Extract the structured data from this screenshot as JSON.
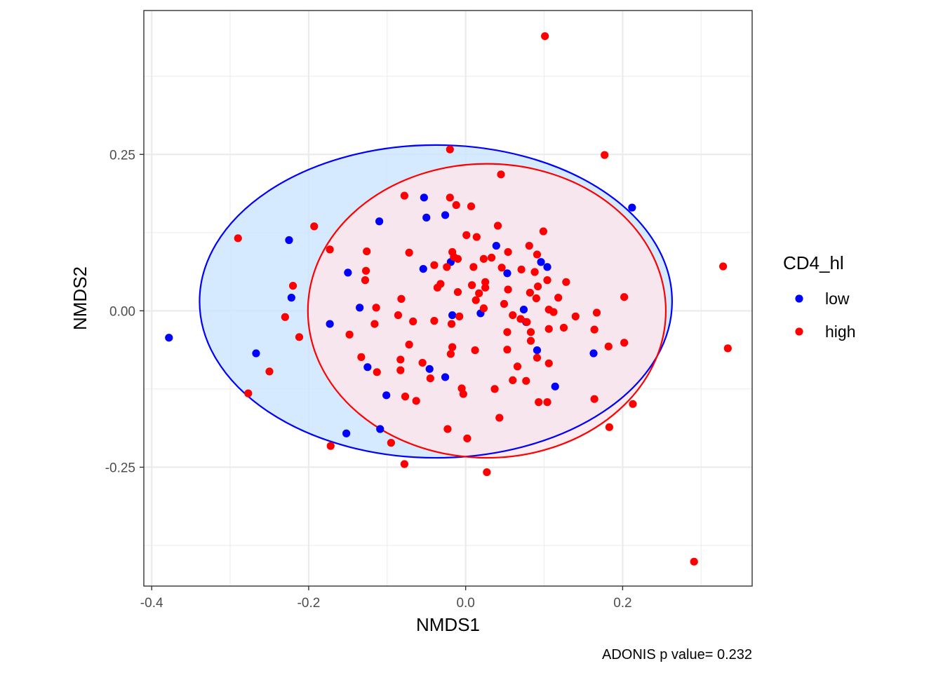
{
  "chart_data": {
    "type": "scatter",
    "xlabel": "NMDS1",
    "ylabel": "NMDS2",
    "xlim": [
      -0.41,
      0.365
    ],
    "ylim": [
      -0.44,
      0.48
    ],
    "x_ticks": [
      -0.4,
      -0.2,
      0.0,
      0.2
    ],
    "x_tick_labels": [
      "-0.4",
      "-0.2",
      "0.0",
      "0.2"
    ],
    "y_ticks": [
      -0.25,
      0.0,
      0.25
    ],
    "y_tick_labels": [
      "-0.25",
      "0.00",
      "0.25"
    ],
    "grid": true,
    "legend": {
      "title": "CD4_hl",
      "position": "right",
      "entries": [
        {
          "label": "low",
          "color": "#0000ff"
        },
        {
          "label": "high",
          "color": "#ff0000"
        }
      ]
    },
    "caption": "ADONIS p value= 0.232",
    "series": [
      {
        "name": "low",
        "color": "#0000ff",
        "fill": "#cce5ff",
        "ellipse": {
          "cx": -0.038,
          "cy": 0.015,
          "rx": 0.301,
          "ry": 0.25
        },
        "points": [
          [
            -0.378,
            -0.043
          ],
          [
            -0.267,
            -0.068
          ],
          [
            -0.225,
            0.113
          ],
          [
            -0.222,
            0.021
          ],
          [
            -0.173,
            -0.021
          ],
          [
            -0.15,
            0.061
          ],
          [
            -0.135,
            0.005
          ],
          [
            -0.125,
            -0.09
          ],
          [
            -0.11,
            0.143
          ],
          [
            -0.101,
            -0.135
          ],
          [
            -0.109,
            -0.189
          ],
          [
            -0.152,
            -0.196
          ],
          [
            -0.053,
            0.181
          ],
          [
            -0.05,
            0.149
          ],
          [
            -0.054,
            0.067
          ],
          [
            -0.046,
            -0.093
          ],
          [
            -0.026,
            0.153
          ],
          [
            -0.026,
            -0.106
          ],
          [
            -0.017,
            -0.007
          ],
          [
            -0.019,
            0.078
          ],
          [
            0.019,
            -0.004
          ],
          [
            0.039,
            0.104
          ],
          [
            0.053,
            0.06
          ],
          [
            0.074,
            0.002
          ],
          [
            0.077,
            -0.018
          ],
          [
            0.096,
            0.078
          ],
          [
            0.104,
            0.07
          ],
          [
            0.091,
            -0.063
          ],
          [
            0.114,
            -0.121
          ],
          [
            0.163,
            -0.068
          ],
          [
            0.212,
            0.165
          ]
        ]
      },
      {
        "name": "high",
        "color": "#ff0000",
        "fill": "#ffe5ea",
        "ellipse": {
          "cx": 0.027,
          "cy": 0.0,
          "rx": 0.228,
          "ry": 0.235
        },
        "points": [
          [
            0.101,
            0.439
          ],
          [
            0.177,
            0.249
          ],
          [
            -0.02,
            0.258
          ],
          [
            0.045,
            0.218
          ],
          [
            -0.078,
            0.184
          ],
          [
            -0.02,
            0.181
          ],
          [
            -0.012,
            0.169
          ],
          [
            0.007,
            0.167
          ],
          [
            -0.193,
            0.135
          ],
          [
            -0.29,
            0.116
          ],
          [
            -0.173,
            0.098
          ],
          [
            -0.126,
            0.095
          ],
          [
            -0.072,
            0.093
          ],
          [
            0.001,
            0.121
          ],
          [
            0.014,
            0.118
          ],
          [
            0.041,
            0.136
          ],
          [
            0.099,
            0.127
          ],
          [
            -0.017,
            0.094
          ],
          [
            -0.015,
            0.086
          ],
          [
            -0.01,
            0.083
          ],
          [
            0.023,
            0.083
          ],
          [
            0.033,
            0.085
          ],
          [
            0.054,
            0.094
          ],
          [
            0.081,
            0.104
          ],
          [
            0.091,
            0.09
          ],
          [
            -0.04,
            0.073
          ],
          [
            -0.024,
            0.07
          ],
          [
            0.01,
            0.07
          ],
          [
            0.046,
            0.069
          ],
          [
            0.071,
            0.066
          ],
          [
            0.088,
            0.062
          ],
          [
            -0.127,
            0.064
          ],
          [
            -0.128,
            0.049
          ],
          [
            -0.032,
            0.043
          ],
          [
            -0.036,
            0.037
          ],
          [
            0.025,
            0.046
          ],
          [
            0.025,
            0.037
          ],
          [
            0.008,
            0.041
          ],
          [
            -0.01,
            0.03
          ],
          [
            0.017,
            0.028
          ],
          [
            0.054,
            0.034
          ],
          [
            0.082,
            0.029
          ],
          [
            0.092,
            0.039
          ],
          [
            0.104,
            0.049
          ],
          [
            0.128,
            0.046
          ],
          [
            -0.22,
            0.04
          ],
          [
            -0.082,
            0.019
          ],
          [
            0.013,
            0.017
          ],
          [
            0.049,
            0.011
          ],
          [
            0.09,
            0.02
          ],
          [
            0.118,
            0.021
          ],
          [
            -0.114,
            0.005
          ],
          [
            -0.086,
            -0.007
          ],
          [
            -0.067,
            -0.017
          ],
          [
            -0.04,
            -0.016
          ],
          [
            -0.018,
            -0.021
          ],
          [
            -0.008,
            -0.009
          ],
          [
            0.023,
            0.004
          ],
          [
            0.06,
            -0.007
          ],
          [
            0.07,
            -0.013
          ],
          [
            0.078,
            -0.018
          ],
          [
            0.106,
            0.002
          ],
          [
            0.112,
            -0.002
          ],
          [
            0.14,
            -0.009
          ],
          [
            0.164,
            -0.03
          ],
          [
            0.167,
            -0.003
          ],
          [
            0.202,
            0.022
          ],
          [
            -0.23,
            -0.01
          ],
          [
            -0.116,
            -0.021
          ],
          [
            -0.148,
            -0.038
          ],
          [
            -0.212,
            -0.042
          ],
          [
            0.053,
            -0.034
          ],
          [
            0.083,
            -0.034
          ],
          [
            0.083,
            -0.048
          ],
          [
            0.106,
            -0.029
          ],
          [
            0.125,
            -0.027
          ],
          [
            -0.072,
            -0.054
          ],
          [
            -0.017,
            -0.058
          ],
          [
            0.012,
            -0.063
          ],
          [
            0.053,
            -0.062
          ],
          [
            0.091,
            -0.075
          ],
          [
            -0.133,
            -0.074
          ],
          [
            -0.083,
            -0.078
          ],
          [
            -0.055,
            -0.083
          ],
          [
            -0.019,
            -0.069
          ],
          [
            0.066,
            -0.089
          ],
          [
            0.106,
            -0.084
          ],
          [
            -0.25,
            -0.097
          ],
          [
            -0.113,
            -0.098
          ],
          [
            -0.083,
            -0.095
          ],
          [
            -0.045,
            -0.108
          ],
          [
            0.037,
            -0.125
          ],
          [
            0.06,
            -0.111
          ],
          [
            0.077,
            -0.112
          ],
          [
            -0.005,
            -0.124
          ],
          [
            -0.003,
            -0.133
          ],
          [
            -0.077,
            -0.137
          ],
          [
            -0.063,
            -0.144
          ],
          [
            0.093,
            -0.146
          ],
          [
            0.104,
            -0.146
          ],
          [
            0.164,
            -0.141
          ],
          [
            0.213,
            -0.149
          ],
          [
            -0.277,
            -0.132
          ],
          [
            -0.023,
            -0.189
          ],
          [
            0.043,
            -0.171
          ],
          [
            0.182,
            -0.057
          ],
          [
            0.202,
            -0.051
          ],
          [
            0.183,
            -0.186
          ],
          [
            0.002,
            -0.204
          ],
          [
            -0.095,
            -0.211
          ],
          [
            -0.172,
            -0.216
          ],
          [
            -0.078,
            -0.245
          ],
          [
            0.027,
            -0.258
          ],
          [
            0.328,
            0.071
          ],
          [
            0.334,
            -0.06
          ],
          [
            0.291,
            -0.401
          ]
        ]
      }
    ]
  }
}
